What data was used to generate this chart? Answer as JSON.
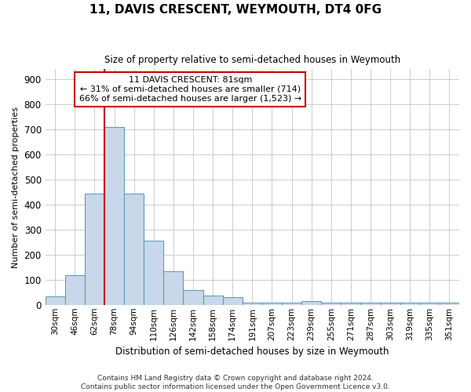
{
  "title": "11, DAVIS CRESCENT, WEYMOUTH, DT4 0FG",
  "subtitle": "Size of property relative to semi-detached houses in Weymouth",
  "xlabel": "Distribution of semi-detached houses by size in Weymouth",
  "ylabel": "Number of semi-detached properties",
  "footnote": "Contains HM Land Registry data © Crown copyright and database right 2024.\nContains public sector information licensed under the Open Government Licence v3.0.",
  "bar_color": "#c8d8ea",
  "bar_edge_color": "#6699bb",
  "categories": [
    "30sqm",
    "46sqm",
    "62sqm",
    "78sqm",
    "94sqm",
    "110sqm",
    "126sqm",
    "142sqm",
    "158sqm",
    "174sqm",
    "191sqm",
    "207sqm",
    "223sqm",
    "239sqm",
    "255sqm",
    "271sqm",
    "287sqm",
    "303sqm",
    "319sqm",
    "335sqm",
    "351sqm"
  ],
  "values": [
    35,
    118,
    445,
    710,
    445,
    255,
    135,
    58,
    38,
    30,
    10,
    8,
    8,
    15,
    8,
    8,
    8,
    8,
    10,
    8,
    8
  ],
  "pct_smaller": 31,
  "pct_larger": 66,
  "n_smaller": 714,
  "n_larger": 1523,
  "vline_position": 3.0,
  "vline_color": "#cc0000",
  "annotation_box_color": "#cc0000",
  "ylim": [
    0,
    940
  ],
  "yticks": [
    0,
    100,
    200,
    300,
    400,
    500,
    600,
    700,
    800,
    900
  ],
  "grid_color": "#cccccc",
  "background_color": "#ffffff",
  "bar_width": 1.0
}
